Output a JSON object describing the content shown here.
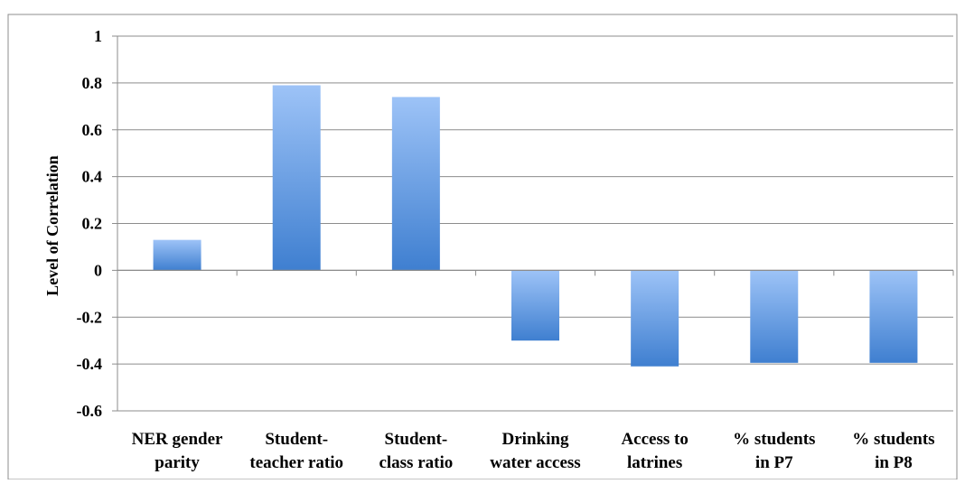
{
  "chart_data": {
    "type": "bar",
    "title": "",
    "xlabel": "",
    "ylabel": "Level of Correlation",
    "ylim": [
      -0.6,
      1
    ],
    "yticks": [
      1,
      0.8,
      0.6,
      0.4,
      0.2,
      0,
      -0.2,
      -0.4,
      -0.6
    ],
    "ytick_labels": [
      "1",
      "0.8",
      "0.6",
      "0.4",
      "0.2",
      "0",
      "-0.2",
      "-0.4",
      "-0.6"
    ],
    "categories": [
      [
        "NER gender",
        "parity"
      ],
      [
        "Student-",
        "teacher ratio"
      ],
      [
        "Student-",
        "class ratio"
      ],
      [
        "Drinking",
        "water access"
      ],
      [
        "Access to",
        "latrines"
      ],
      [
        "% students",
        "in P7"
      ],
      [
        "% students",
        "in P8"
      ]
    ],
    "values": [
      0.13,
      0.79,
      0.74,
      -0.3,
      -0.41,
      -0.395,
      -0.395
    ],
    "grid": true,
    "legend": "none",
    "colors": {
      "bar_top": "#9DC3F7",
      "bar_bottom": "#3F7FD0",
      "grid": "#8C8C8C",
      "frame": "#8C8C8C"
    }
  }
}
